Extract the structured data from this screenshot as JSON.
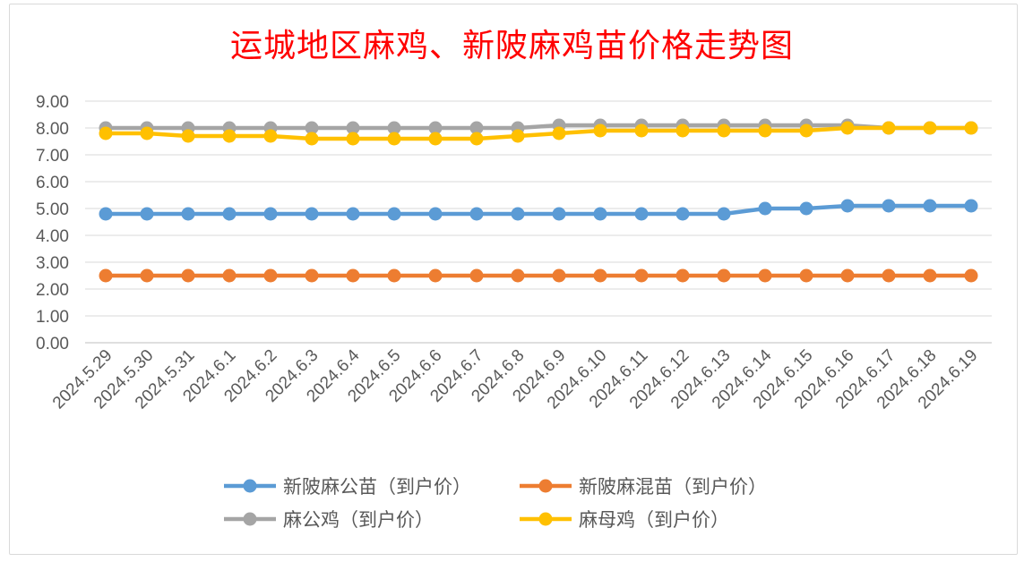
{
  "chart_data": {
    "type": "line",
    "title": "运城地区麻鸡、新陂麻鸡苗价格走势图",
    "xlabel": "",
    "ylabel": "",
    "ylim": [
      0,
      9
    ],
    "yticks": [
      "0.00",
      "1.00",
      "2.00",
      "3.00",
      "4.00",
      "5.00",
      "6.00",
      "7.00",
      "8.00",
      "9.00"
    ],
    "grid": true,
    "legend_position": "bottom",
    "categories": [
      "2024.5.29",
      "2024.5.30",
      "2024.5.31",
      "2024.6.1",
      "2024.6.2",
      "2024.6.3",
      "2024.6.4",
      "2024.6.5",
      "2024.6.6",
      "2024.6.7",
      "2024.6.8",
      "2024.6.9",
      "2024.6.10",
      "2024.6.11",
      "2024.6.12",
      "2024.6.13",
      "2024.6.14",
      "2024.6.15",
      "2024.6.16",
      "2024.6.17",
      "2024.6.18",
      "2024.6.19"
    ],
    "series": [
      {
        "name": "新陂麻公苗（到户价）",
        "color": "#5b9bd5",
        "values": [
          4.8,
          4.8,
          4.8,
          4.8,
          4.8,
          4.8,
          4.8,
          4.8,
          4.8,
          4.8,
          4.8,
          4.8,
          4.8,
          4.8,
          4.8,
          4.8,
          5.0,
          5.0,
          5.1,
          5.1,
          5.1,
          5.1
        ]
      },
      {
        "name": "新陂麻混苗（到户价）",
        "color": "#ed7d31",
        "values": [
          2.5,
          2.5,
          2.5,
          2.5,
          2.5,
          2.5,
          2.5,
          2.5,
          2.5,
          2.5,
          2.5,
          2.5,
          2.5,
          2.5,
          2.5,
          2.5,
          2.5,
          2.5,
          2.5,
          2.5,
          2.5,
          2.5
        ]
      },
      {
        "name": "麻公鸡（到户价）",
        "color": "#a5a5a5",
        "values": [
          8.0,
          8.0,
          8.0,
          8.0,
          8.0,
          8.0,
          8.0,
          8.0,
          8.0,
          8.0,
          8.0,
          8.1,
          8.1,
          8.1,
          8.1,
          8.1,
          8.1,
          8.1,
          8.1,
          8.0,
          8.0,
          8.0
        ]
      },
      {
        "name": "麻母鸡（到户价）",
        "color": "#ffc000",
        "values": [
          7.8,
          7.8,
          7.7,
          7.7,
          7.7,
          7.6,
          7.6,
          7.6,
          7.6,
          7.6,
          7.7,
          7.8,
          7.9,
          7.9,
          7.9,
          7.9,
          7.9,
          7.9,
          8.0,
          8.0,
          8.0,
          8.0
        ]
      }
    ]
  }
}
